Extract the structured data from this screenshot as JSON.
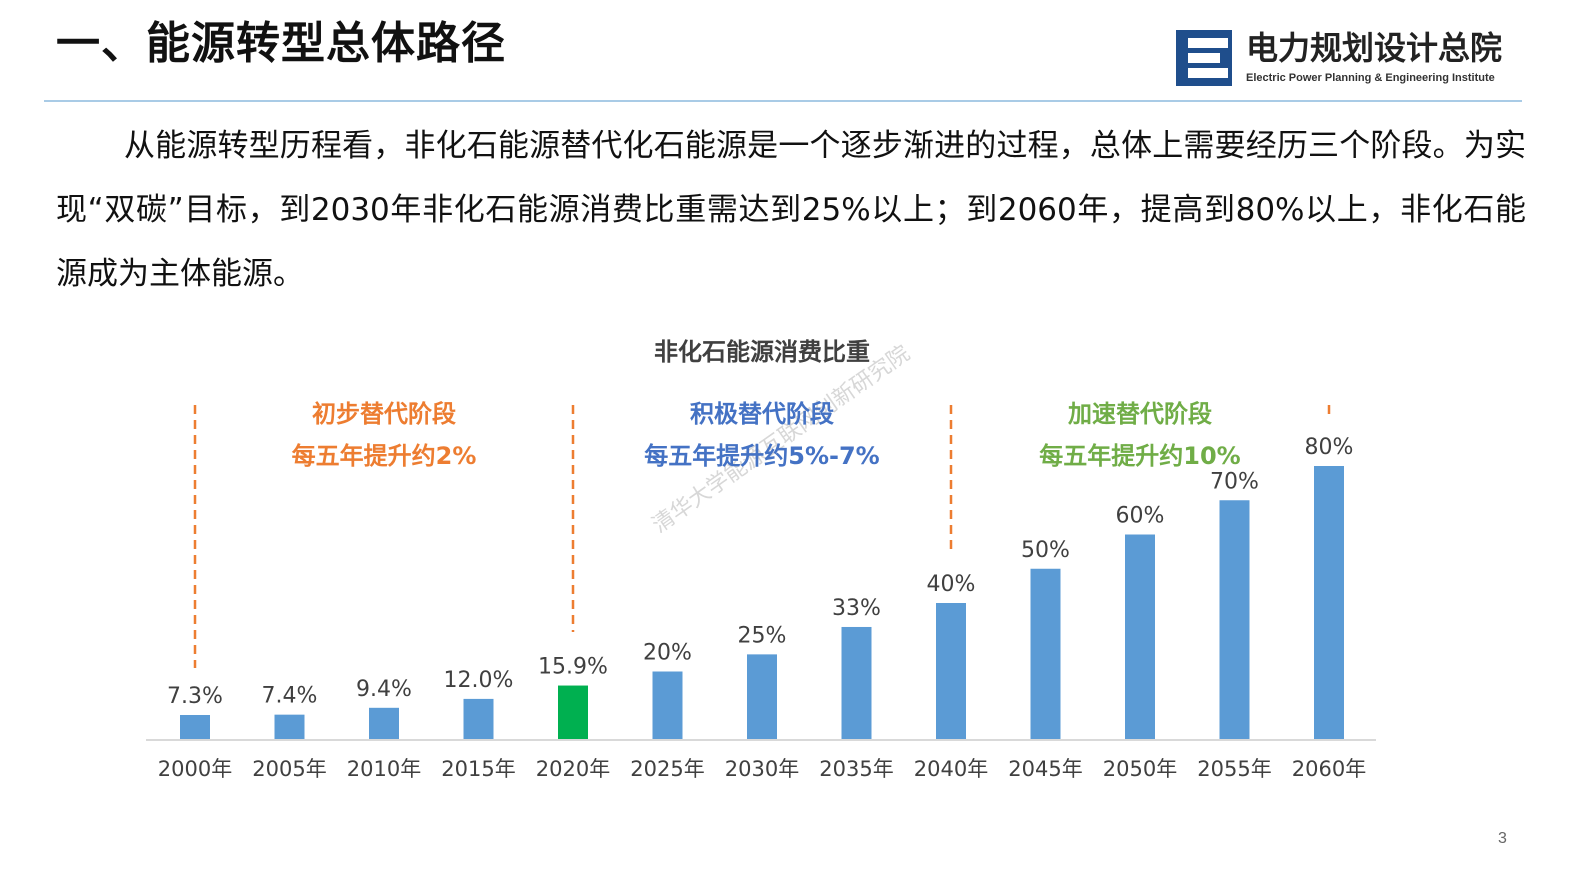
{
  "slide": {
    "title": "一、能源转型总体路径",
    "page_number": "3"
  },
  "logo": {
    "name_cn": "电力规划设计总院",
    "name_en": "Electric Power Planning & Engineering Institute"
  },
  "paragraph": "从能源转型历程看，非化石能源替代化石能源是一个逐步渐进的过程，总体上需要经历三个阶段。为实现“双碳”目标，到2030年非化石能源消费比重需达到25%以上；到2060年，提高到80%以上，非化石能源成为主体能源。",
  "watermark": "清华大学能源互联网创新研究院",
  "colors": {
    "bar": "#5b9bd5",
    "bar_highlight": "#00b050",
    "stage1": "#ed7d31",
    "stage2": "#4472c4",
    "stage3": "#70ad47",
    "axis": "#d9d9d9",
    "text": "#404040"
  },
  "chart_data": {
    "type": "bar",
    "title": "非化石能源消费比重",
    "categories": [
      "2000年",
      "2005年",
      "2010年",
      "2015年",
      "2020年",
      "2025年",
      "2030年",
      "2035年",
      "2040年",
      "2045年",
      "2050年",
      "2055年",
      "2060年"
    ],
    "values": [
      7.3,
      7.4,
      9.4,
      12.0,
      15.9,
      20,
      25,
      33,
      40,
      50,
      60,
      70,
      80
    ],
    "data_labels": [
      "7.3%",
      "7.4%",
      "9.4%",
      "12.0%",
      "15.9%",
      "20%",
      "25%",
      "33%",
      "40%",
      "50%",
      "60%",
      "70%",
      "80%"
    ],
    "highlight_category": "2020年",
    "ylim": [
      0,
      80
    ],
    "unit": "%",
    "xlabel": "",
    "ylabel": "",
    "grid": false,
    "stages": [
      {
        "name": "初步替代阶段",
        "note": "每五年提升约2%",
        "start": "2000年",
        "end": "2020年"
      },
      {
        "name": "积极替代阶段",
        "note": "每五年提升约5%-7%",
        "start": "2020年",
        "end": "2040年"
      },
      {
        "name": "加速替代阶段",
        "note": "每五年提升约10%",
        "start": "2040年",
        "end": "2060年"
      }
    ]
  }
}
